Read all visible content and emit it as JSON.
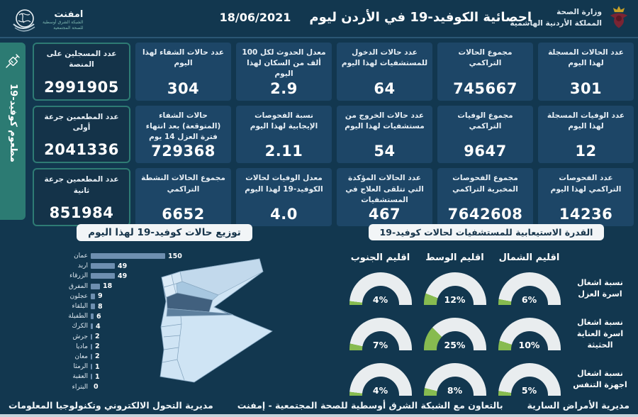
{
  "header": {
    "title": "احصائية الكوفيد-19 في الأردن ليوم",
    "date": "18/06/2021",
    "ministry": {
      "line1": "وزارة الصحة",
      "line2": "المملكة الأردنية الهاشمية",
      "icon": "royal-emblem-icon"
    },
    "emphnet": {
      "name": "امفنت",
      "tag1": "الشبكة الشرق أوسطية",
      "tag2": "للصحة المجتمعية",
      "icon": "globe-icon"
    }
  },
  "sidebar": {
    "label": "مطعوم كوفيد-19",
    "icon": "syringe-icon"
  },
  "stats": {
    "rows": [
      {
        "cards": [
          {
            "label": "عدد الحالات المسجلة لهذا اليوم",
            "value": "301"
          },
          {
            "label": "مجموع الحالات التراكمي",
            "value": "745667"
          },
          {
            "label": "عدد حالات الدخول للمستشفيات لهذا اليوم",
            "value": "64"
          },
          {
            "label": "معدل الحدوث لكل 100 ألف من السكان لهذا اليوم",
            "value": "2.9"
          },
          {
            "label": "عدد حالات الشفاء لهذا اليوم",
            "value": "304"
          }
        ]
      },
      {
        "cards": [
          {
            "label": "عدد الوفيات المسجلة لهذا اليوم",
            "value": "12"
          },
          {
            "label": "مجموع الوفيات التراكمي",
            "value": "9647"
          },
          {
            "label": "عدد حالات الخروج من مستشفيات لهذا اليوم",
            "value": "54"
          },
          {
            "label": "نسبة الفحوصات الإيجابية لهذا اليوم",
            "value": "2.11"
          },
          {
            "label": "حالات الشفاء (المتوقعة) بعد انتهاء فترة العزل 14 يوم",
            "value": "729368"
          }
        ]
      },
      {
        "cards": [
          {
            "label": "عدد الفحوصات التراكمي لهذا اليوم",
            "value": "14236"
          },
          {
            "label": "مجموع الفحوصات المخبرية التراكمي",
            "value": "7642608"
          },
          {
            "label": "عدد الحالات المؤكدة التي تتلقى العلاج في المستشفيات",
            "value": "467"
          },
          {
            "label": "معدل الوفيات لحالات الكوفيد-19 لهذا اليوم",
            "value": "4.0"
          },
          {
            "label": "مجموع الحالات النشطة التراكمي",
            "value": "6652"
          }
        ]
      }
    ],
    "vaccine_cards": [
      {
        "label": "عدد المسجلين على المنصة",
        "value": "2991905"
      },
      {
        "label": "عدد المطعمين جرعة أولى",
        "value": "2041336"
      },
      {
        "label": "عدد المطعمين جرعة ثانية",
        "value": "851984"
      }
    ]
  },
  "chart_data": [
    {
      "type": "bar",
      "orientation": "horizontal",
      "title": "توزيع حالات كوفيد-19 لهذا اليوم",
      "categories": [
        "عمان",
        "اربد",
        "الزرقاء",
        "المفرق",
        "عجلون",
        "البلقاء",
        "الطفيلة",
        "الكرك",
        "جرش",
        "ماديا",
        "معان",
        "الرمثا",
        "العقبة",
        "البتراء"
      ],
      "values": [
        150,
        49,
        49,
        18,
        9,
        8,
        6,
        4,
        2,
        2,
        2,
        1,
        1,
        0
      ],
      "xlim": [
        0,
        150
      ],
      "bar_color": "#6E8FB0"
    },
    {
      "type": "gauge-grid",
      "title": "القدرة الاستيعابية للمستشفيات لحالات كوفيد-19",
      "columns": [
        "اقليم الشمال",
        "اقليم الوسط",
        "اقليم الجنوب"
      ],
      "rows": [
        "نسبة اشغال اسرة العزل",
        "نسبة اشغال اسرة العناية الحثيثة",
        "نسبة اشغال اجهزة التنفس"
      ],
      "values_pct": [
        [
          6,
          12,
          4
        ],
        [
          10,
          25,
          7
        ],
        [
          5,
          8,
          4
        ]
      ],
      "arc_color": "#E9EDEF",
      "fill_color": "#87BB50"
    }
  ],
  "map": {
    "name": "jordan-governorates-map",
    "highlight": "عمان"
  },
  "footer": {
    "right": "مديرية الأمراض السارية",
    "center": "بالتعاون مع الشبكة الشرق أوسطية للصحة المجتمعية - إمفنت",
    "left": "مديرية التحول الالكتروني وتكنولوجيا المعلومات"
  },
  "colors": {
    "background": "#12374F",
    "card": "#1D4667",
    "vaccine_accent": "#2E7B74",
    "bar": "#6E8FB0",
    "gauge_green": "#87BB50",
    "pill": "#F2F5F7"
  }
}
